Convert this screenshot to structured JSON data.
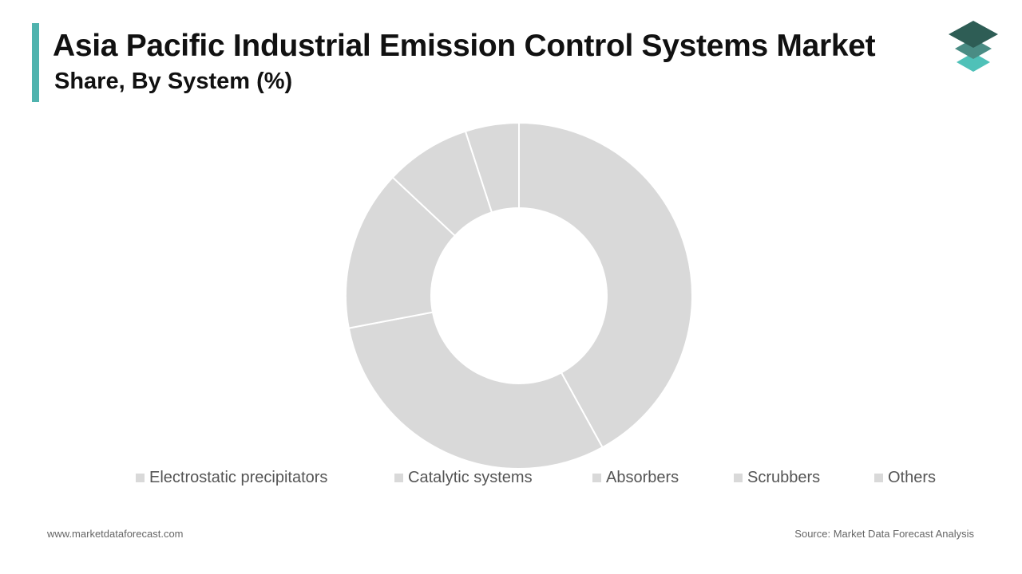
{
  "header": {
    "title": "Asia Pacific Industrial Emission Control Systems Market",
    "subtitle": "Share, By System (%)",
    "accent_color": "#4fb3ae"
  },
  "logo": {
    "icon": "stacked-layers-logo-icon",
    "colors": [
      "#2e5d55",
      "#4a8c84",
      "#4fc1b8"
    ]
  },
  "chart_data": {
    "type": "pie",
    "style": "donut",
    "title": "",
    "categories": [
      "Electrostatic precipitators",
      "Catalytic systems",
      "Absorbers",
      "Scrubbers",
      "Others"
    ],
    "values": [
      42,
      30,
      15,
      8,
      5
    ],
    "unit": "%",
    "colors": [
      "#d9d9d9",
      "#d9d9d9",
      "#d9d9d9",
      "#d9d9d9",
      "#d9d9d9"
    ],
    "separator_color": "#ffffff",
    "legend_position": "bottom",
    "start_angle": "top",
    "direction": "clockwise"
  },
  "footer": {
    "website": "www.marketdataforecast.com",
    "source": "Source: Market Data Forecast Analysis"
  }
}
